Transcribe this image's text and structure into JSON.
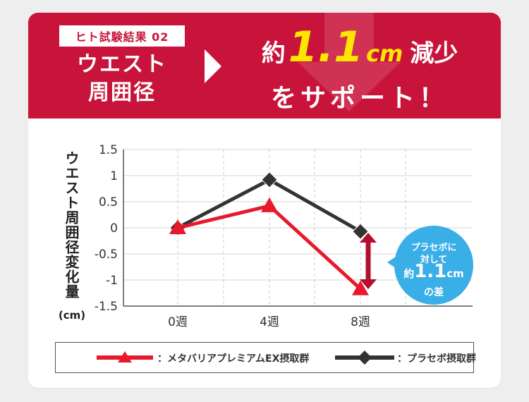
{
  "header": {
    "study_tag": "ヒト試験結果 02",
    "metric_line1": "ウエスト",
    "metric_line2": "周囲径",
    "claim_pre": "約",
    "claim_value": "1.1",
    "claim_unit": "cm",
    "claim_post": "減少",
    "claim_line2": "をサポート！"
  },
  "bubble": {
    "line1": "プラセボに",
    "line2": "対して",
    "pre": "約",
    "value": "1.1",
    "unit": "cm",
    "line4": "の差"
  },
  "colors": {
    "brand_red": "#c8143a",
    "test_series": "#e8192c",
    "placebo_series": "#333333",
    "highlight_yellow": "#ffe600",
    "bubble_blue": "#3aaee6",
    "diff_arrow": "#b0102e"
  },
  "chart_data": {
    "type": "line",
    "title": "",
    "ylabel": "ウエスト周囲径変化量",
    "yunit": "(cm)",
    "xlabel": "",
    "x": [
      "0週",
      "4週",
      "8週"
    ],
    "ylim": [
      -1.5,
      1.5
    ],
    "yticks": [
      1.5,
      1,
      0.5,
      0,
      -0.5,
      -1,
      -1.5
    ],
    "ytick_labels": [
      "1.5",
      "1",
      "0.5",
      "0",
      "-0.5",
      "-1",
      "-1.5"
    ],
    "grid": "horizontal solid, vertical dashed",
    "legend_position": "bottom",
    "series": [
      {
        "name": "：メタバリアプレミアムEX摂取群",
        "marker": "triangle",
        "color": "#e8192c",
        "values": [
          0,
          0.42,
          -1.17
        ]
      },
      {
        "name": "：プラセボ摂取群",
        "marker": "diamond",
        "color": "#333333",
        "values": [
          0,
          0.92,
          -0.07
        ]
      }
    ]
  }
}
